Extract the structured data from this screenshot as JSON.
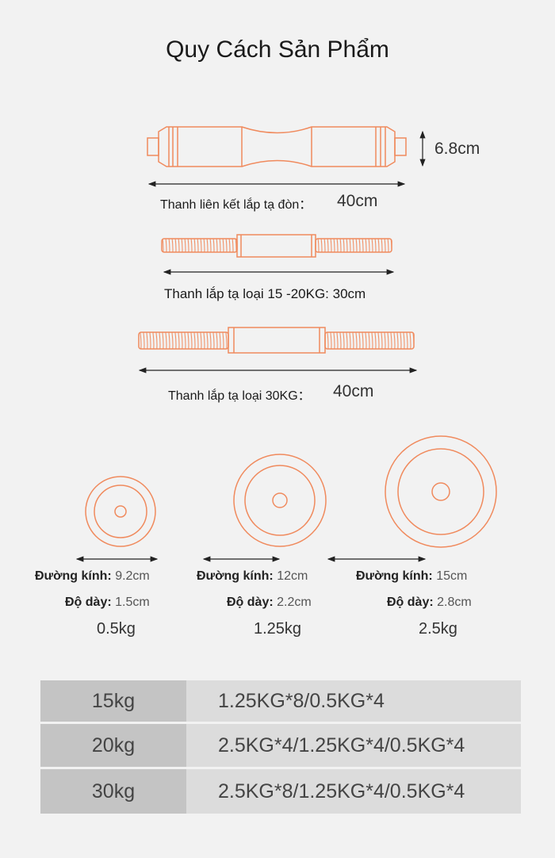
{
  "title": "Quy Cách Sản Phẩm",
  "accent_color": "#f08a5d",
  "bars": [
    {
      "label": "Thanh liên kết lắp tạ đòn：",
      "length": "40cm",
      "height": "6.8cm"
    },
    {
      "label": "Thanh lắp tạ loại 15 -20KG: 30cm"
    },
    {
      "label": "Thanh lắp tạ loại 30KG：",
      "length": "40cm"
    }
  ],
  "plates": [
    {
      "diameter_label": "Đường kính:",
      "diameter": "9.2cm",
      "thickness_label": "Độ dày:",
      "thickness": "1.5cm",
      "weight": "0.5kg"
    },
    {
      "diameter_label": "Đường kính:",
      "diameter": "12cm",
      "thickness_label": "Độ dày:",
      "thickness": "2.2cm",
      "weight": "1.25kg"
    },
    {
      "diameter_label": "Đường kính:",
      "diameter": "15cm",
      "thickness_label": "Độ dày:",
      "thickness": "2.8cm",
      "weight": "2.5kg"
    }
  ],
  "table": [
    {
      "set": "15kg",
      "composition": "1.25KG*8/0.5KG*4"
    },
    {
      "set": "20kg",
      "composition": "2.5KG*4/1.25KG*4/0.5KG*4"
    },
    {
      "set": "30kg",
      "composition": "2.5KG*8/1.25KG*4/0.5KG*4"
    }
  ]
}
